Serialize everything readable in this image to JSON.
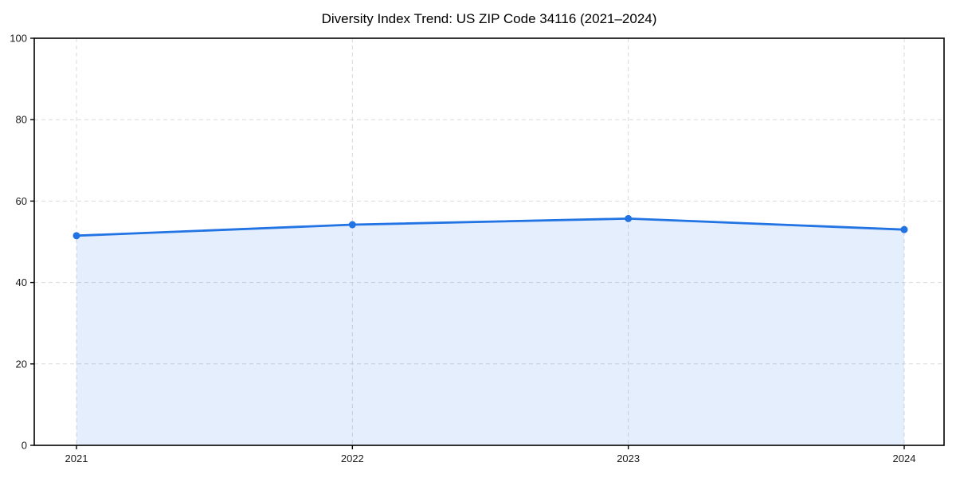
{
  "page": {
    "background": "#ffffff"
  },
  "chart_data": {
    "type": "line",
    "title": "Diversity Index Trend: US ZIP Code 34116 (2021–2024)",
    "categories": [
      "2021",
      "2022",
      "2023",
      "2024"
    ],
    "x": [
      2021,
      2022,
      2023,
      2024
    ],
    "series": [
      {
        "name": "Diversity Index",
        "values": [
          51.5,
          54.2,
          55.7,
          53.0
        ]
      }
    ],
    "xlabel": "",
    "ylabel": "",
    "ylim": [
      0,
      100
    ],
    "yticks": [
      0,
      20,
      40,
      60,
      80,
      100
    ],
    "grid": true,
    "grid_style": "dashed",
    "legend_position": "none",
    "area_fill": true,
    "marker": "circle",
    "colors": {
      "line": "#2273e3",
      "marker": "#2273e3",
      "fill": "#2273e3",
      "fill_opacity": "0.12",
      "grid": "#d9d9d9",
      "axis": "#000000",
      "tick_label": "#1a1a1a",
      "title": "#000000",
      "background": "#ffffff"
    }
  }
}
